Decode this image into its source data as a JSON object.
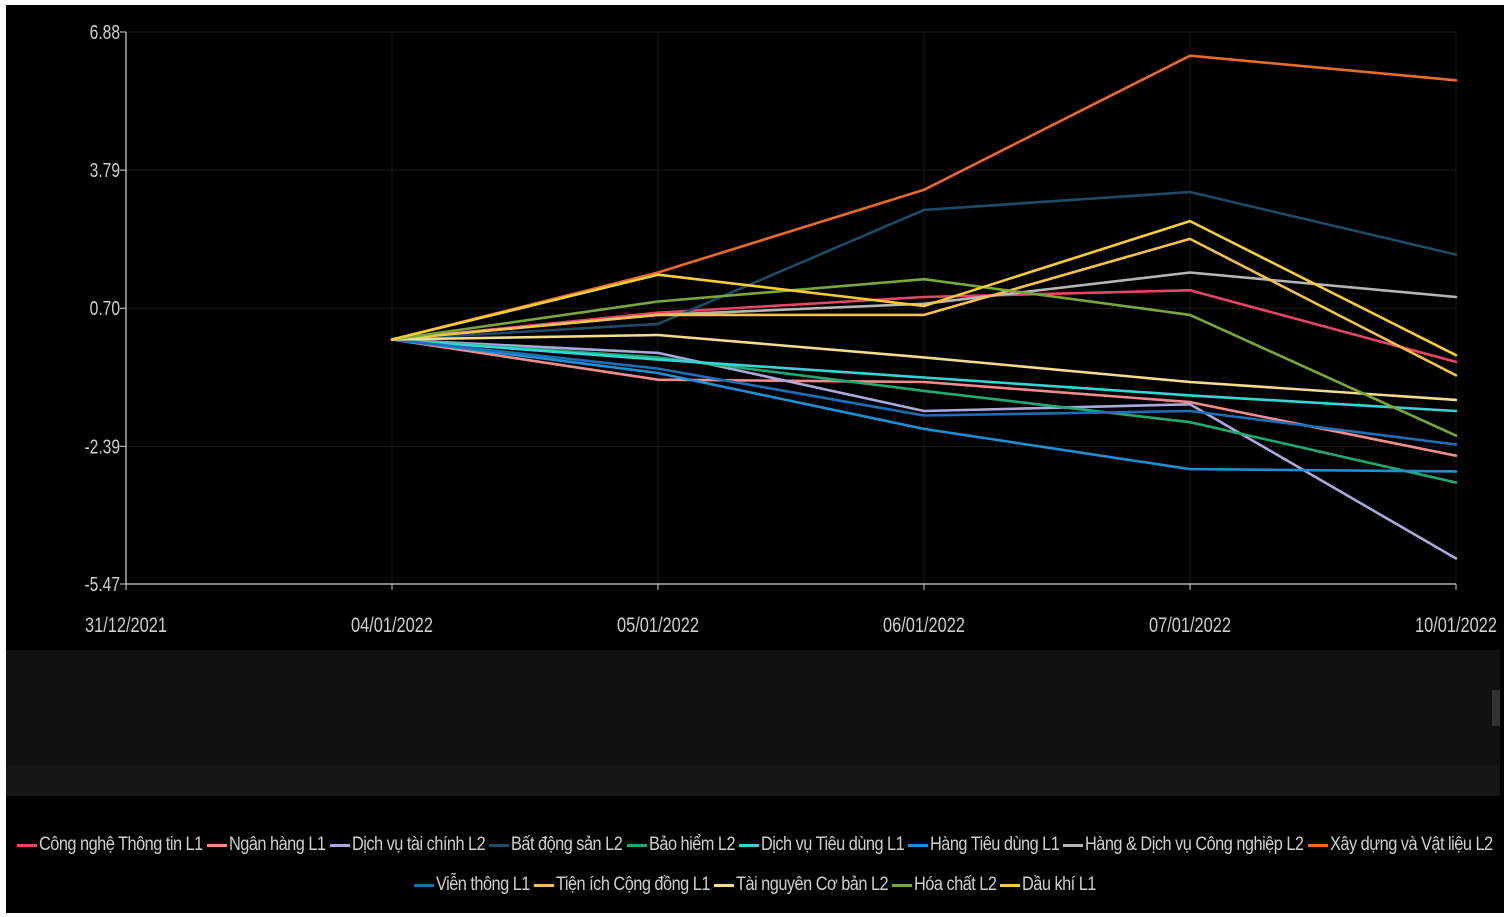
{
  "chart_data": {
    "type": "line",
    "title": "",
    "xlabel": "",
    "ylabel": "",
    "x": [
      "31/12/2021",
      "04/01/2022",
      "05/01/2022",
      "06/01/2022",
      "07/01/2022",
      "10/01/2022"
    ],
    "y_ticks": [
      "6.88",
      "3.79",
      "0.70",
      "-2.39",
      "-5.47"
    ],
    "ylim": [
      -5.47,
      6.88
    ],
    "grid": true,
    "legend_position": "bottom",
    "series": [
      {
        "name": "Công nghệ Thông tin L1",
        "color": "#e8456a",
        "values": [
          null,
          0,
          0.6,
          0.95,
          1.1,
          -0.5
        ]
      },
      {
        "name": "Ngân hàng L1",
        "color": "#f08c8c",
        "values": [
          null,
          0,
          -0.9,
          -0.95,
          -1.4,
          -2.6
        ]
      },
      {
        "name": "Dịch vụ tài chính L2",
        "color": "#a9a9dd",
        "values": [
          null,
          0,
          -0.3,
          -1.6,
          -1.45,
          -4.9
        ]
      },
      {
        "name": "Bất động sản L2",
        "color": "#1f4a66",
        "values": [
          null,
          0,
          0.35,
          2.9,
          3.3,
          1.9
        ]
      },
      {
        "name": "Bảo hiểm L2",
        "color": "#1faa73",
        "values": [
          null,
          0,
          -0.4,
          -1.15,
          -1.85,
          -3.2
        ]
      },
      {
        "name": "Dịch vụ Tiêu dùng L1",
        "color": "#33d6d6",
        "values": [
          null,
          0,
          -0.45,
          -0.85,
          -1.25,
          -1.6
        ]
      },
      {
        "name": "Hàng Tiêu dùng L1",
        "color": "#1e8fd6",
        "values": [
          null,
          0,
          -0.75,
          -2.0,
          -2.9,
          -2.95
        ]
      },
      {
        "name": "Hàng & Dịch vụ Công nghiệp L2",
        "color": "#b5b5b5",
        "values": [
          null,
          0,
          0.55,
          0.8,
          1.5,
          0.95
        ]
      },
      {
        "name": "Xây dựng và Vật liệu L2",
        "color": "#e96a2a",
        "values": [
          null,
          0,
          1.5,
          3.35,
          6.35,
          5.8
        ]
      },
      {
        "name": "Viễn thông L1",
        "color": "#1a6fb8",
        "values": [
          null,
          0,
          -0.65,
          -1.7,
          -1.6,
          -2.35
        ]
      },
      {
        "name": "Tiện ích Cộng đồng L1",
        "color": "#f2c14e",
        "values": [
          null,
          0,
          0.55,
          0.55,
          2.25,
          -0.8
        ]
      },
      {
        "name": "Tài nguyên Cơ bản L2",
        "color": "#f3dc8c",
        "values": [
          null,
          0,
          0.1,
          -0.4,
          -0.95,
          -1.35
        ]
      },
      {
        "name": "Hóa chất L2",
        "color": "#7aa63a",
        "values": [
          null,
          0,
          0.85,
          1.35,
          0.55,
          -2.15
        ]
      },
      {
        "name": "Dầu khí L1",
        "color": "#f5cc3a",
        "values": [
          null,
          0,
          1.45,
          0.75,
          2.65,
          -0.35
        ]
      }
    ]
  }
}
